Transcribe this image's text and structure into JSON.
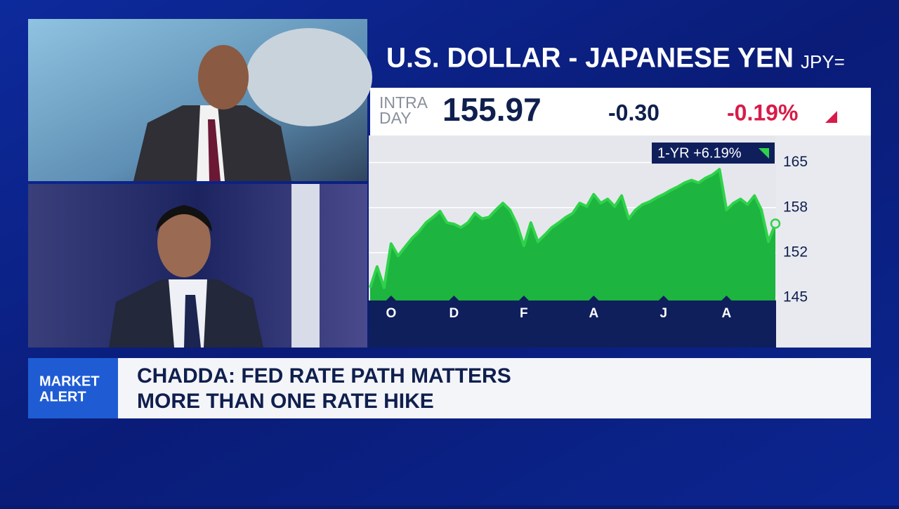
{
  "chart_data": {
    "type": "line",
    "title": "U.S. DOLLAR - JAPANESE YEN",
    "ticker": "JPY=",
    "intraday_label": [
      "INTRA",
      "DAY"
    ],
    "price": "155.97",
    "change": "-0.30",
    "change_percent": "-0.19%",
    "period_badge": "1-YR +6.19%",
    "categories": [
      null,
      null,
      null,
      "O",
      null,
      null,
      null,
      null,
      null,
      null,
      null,
      null,
      "D",
      null,
      null,
      null,
      null,
      null,
      null,
      null,
      null,
      null,
      "F",
      null,
      null,
      null,
      null,
      null,
      null,
      null,
      null,
      null,
      "A",
      null,
      null,
      null,
      null,
      null,
      null,
      null,
      null,
      null,
      "J",
      null,
      null,
      null,
      null,
      null,
      null,
      null,
      null,
      "A",
      null,
      null,
      null,
      null,
      null,
      null,
      null
    ],
    "values": [
      146.5,
      149.6,
      146.5,
      153,
      151.2,
      152.5,
      153.8,
      154.8,
      156.1,
      156.9,
      157.8,
      156.1,
      155.9,
      155.4,
      156.1,
      157.5,
      156.7,
      156.9,
      158,
      159,
      158,
      155.9,
      152.7,
      156.1,
      153.3,
      154.3,
      155.4,
      156.1,
      156.9,
      157.5,
      159,
      158.5,
      160.3,
      159,
      159.6,
      158.5,
      160.1,
      156.7,
      158,
      158.8,
      159.2,
      159.8,
      160.3,
      160.9,
      161.4,
      162,
      162.4,
      162,
      162.7,
      163.2,
      164,
      158,
      159,
      159.6,
      158.8,
      160.1,
      158,
      153.3,
      155.97
    ],
    "color": "#2fd24a",
    "ylim": [
      144.6,
      169
    ],
    "yticks": [
      145,
      {
        "value": 151.67,
        "label": "152"
      },
      {
        "value": 158.33,
        "label": "158"
      },
      165
    ],
    "grid": true
  },
  "banner": {
    "tag": [
      "MARKET",
      "ALERT"
    ],
    "headline": [
      "CHADDA: FED RATE PATH MATTERS",
      "MORE THAN ONE RATE HIKE"
    ]
  }
}
